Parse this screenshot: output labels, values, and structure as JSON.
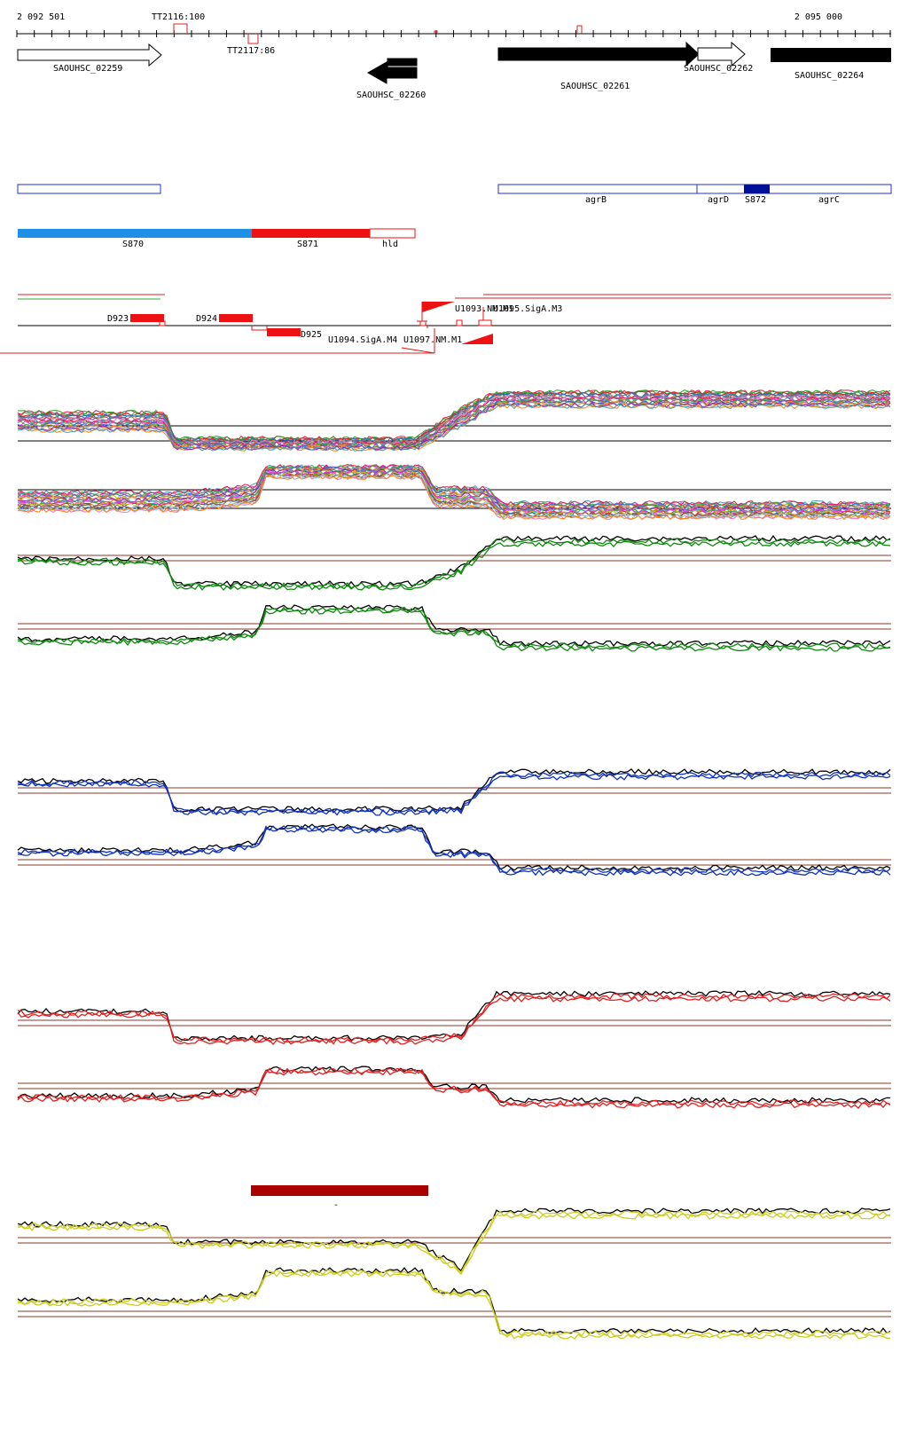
{
  "ruler": {
    "start": "2 092 501",
    "end": "2 095 000"
  },
  "terminators": [
    {
      "label": "TT2116:100",
      "strand": "+"
    },
    {
      "label": "TT2117:86",
      "strand": "-"
    }
  ],
  "genes": [
    {
      "label": "SAOUHSC_02259",
      "strand": "+",
      "style": "open"
    },
    {
      "label": "SAOUHSC_02260",
      "strand": "-",
      "style": "filled"
    },
    {
      "label": "SAOUHSC_02261",
      "strand": "+",
      "style": "filled"
    },
    {
      "label": "SAOUHSC_02262",
      "strand": "+",
      "style": "open"
    },
    {
      "label": "SAOUHSC_02264",
      "strand": "+",
      "style": "filled"
    }
  ],
  "operon_labels": [
    "agrB",
    "agrD",
    "S872",
    "agrC"
  ],
  "segments": [
    "S870",
    "S871",
    "hld"
  ],
  "tiling_labels": [
    "D923",
    "D924",
    "D925",
    "U1093.NM.M1",
    "U1095.SigA.M3",
    "U1094.SigA.M4",
    "U1097.NM.M1",
    "-"
  ],
  "colors": {
    "gene_fill": "#000000",
    "operon_blue": "#2233cc",
    "operon_dark": "#001199",
    "s870": "#1e90e8",
    "s871": "#ee1111",
    "pos_red": "#cc0000",
    "baseline_brown": "#8b3a2a",
    "green": "#118811",
    "blue": "#1133bb",
    "red": "#dd2222",
    "yellow": "#cccc22",
    "condition_bar": "#aa0000"
  },
  "track_groups": [
    "multi-condition",
    "green",
    "blue",
    "red",
    "yellow"
  ]
}
